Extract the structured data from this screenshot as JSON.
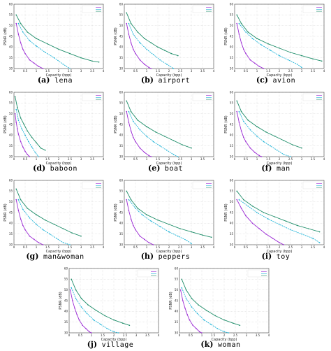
{
  "colors": {
    "series1": "#9b2bd4",
    "series2": "#1fb4d8",
    "series3": "#1f8e6a",
    "grid": "#d0d0d0",
    "axis": "#444444"
  },
  "chart_data": [
    {
      "type": "line",
      "letter": "(a)",
      "name": "lena",
      "xlabel": "Capacity (bpp)",
      "ylabel": "PSNR (dB)",
      "xlim": [
        0,
        4
      ],
      "ylim": [
        30,
        60
      ],
      "xticks": [
        0,
        0.5,
        1,
        1.5,
        2,
        2.5,
        3,
        3.5,
        4
      ],
      "yticks": [
        30,
        35,
        40,
        45,
        50,
        55,
        60
      ],
      "legend": "top-right",
      "series": [
        {
          "name": "",
          "x": [
            0.1,
            0.2,
            0.3,
            0.4,
            0.5,
            0.7,
            0.9,
            1.1,
            1.3
          ],
          "y": [
            51,
            46,
            42,
            39,
            37,
            34,
            32.5,
            31,
            30
          ]
        },
        {
          "name": "",
          "x": [
            0.2,
            0.4,
            0.7,
            1.0,
            1.4,
            1.8,
            2.2,
            2.5
          ],
          "y": [
            51,
            47,
            43,
            40.5,
            37.5,
            35,
            32,
            30
          ]
        },
        {
          "name": "",
          "x": [
            0.1,
            0.3,
            0.6,
            1.0,
            1.5,
            2.0,
            2.5,
            3.0,
            3.5,
            3.8
          ],
          "y": [
            55,
            51,
            47,
            44,
            41.5,
            39,
            37,
            35,
            33.5,
            33
          ]
        }
      ]
    },
    {
      "type": "line",
      "letter": "(b)",
      "name": "airport",
      "xlabel": "Capacity (bpp)",
      "ylabel": "PSNR (dB)",
      "xlim": [
        0,
        4
      ],
      "ylim": [
        30,
        60
      ],
      "xticks": [
        0,
        0.5,
        1,
        1.5,
        2,
        2.5,
        3,
        3.5,
        4
      ],
      "yticks": [
        30,
        35,
        40,
        45,
        50,
        55,
        60
      ],
      "legend": "top-right",
      "series": [
        {
          "name": "",
          "x": [
            0.1,
            0.2,
            0.3,
            0.4,
            0.5,
            0.7,
            0.9,
            1.1,
            1.2
          ],
          "y": [
            51,
            46,
            42,
            39,
            37,
            34,
            32,
            30.5,
            30
          ]
        },
        {
          "name": "",
          "x": [
            0.2,
            0.4,
            0.7,
            1.0,
            1.3,
            1.6,
            1.9,
            2.2
          ],
          "y": [
            51,
            46,
            42,
            39,
            36.5,
            34,
            32,
            30
          ]
        },
        {
          "name": "",
          "x": [
            0.1,
            0.3,
            0.6,
            0.9,
            1.2,
            1.5,
            1.8,
            2.1,
            2.4
          ],
          "y": [
            56,
            51,
            47,
            44,
            42,
            40,
            38.5,
            37,
            36
          ]
        }
      ]
    },
    {
      "type": "line",
      "letter": "(c)",
      "name": "avion",
      "xlabel": "Capacity (bpp)",
      "ylabel": "PSNR (dB)",
      "xlim": [
        0,
        4
      ],
      "ylim": [
        30,
        60
      ],
      "xticks": [
        0,
        0.5,
        1,
        1.5,
        2,
        2.5,
        3,
        3.5,
        4
      ],
      "yticks": [
        30,
        35,
        40,
        45,
        50,
        55,
        60
      ],
      "legend": "top-right",
      "series": [
        {
          "name": "",
          "x": [
            0.1,
            0.2,
            0.3,
            0.4,
            0.5,
            0.7,
            0.9,
            1.1,
            1.3
          ],
          "y": [
            51,
            46,
            42,
            39,
            37,
            34,
            32.5,
            31,
            30
          ]
        },
        {
          "name": "",
          "x": [
            0.2,
            0.5,
            0.8,
            1.2,
            1.6,
            2.0,
            2.4,
            2.8,
            3.0
          ],
          "y": [
            51,
            47,
            44,
            41,
            38.5,
            36,
            34,
            32,
            30.5
          ]
        },
        {
          "name": "",
          "x": [
            0.1,
            0.3,
            0.6,
            1.0,
            1.5,
            2.0,
            2.5,
            3.0,
            3.5,
            3.9
          ],
          "y": [
            55,
            51,
            47,
            44,
            41.5,
            39.5,
            37.5,
            36,
            34.5,
            33.5
          ]
        }
      ]
    },
    {
      "type": "line",
      "letter": "(d)",
      "name": "baboon",
      "xlabel": "Capacity (bpp)",
      "ylabel": "PSNR (dB)",
      "xlim": [
        0,
        4
      ],
      "ylim": [
        30,
        60
      ],
      "xticks": [
        0,
        0.5,
        1,
        1.5,
        2,
        2.5,
        3,
        3.5,
        4
      ],
      "yticks": [
        30,
        35,
        40,
        45,
        50,
        55,
        60
      ],
      "legend": "top-right",
      "series": [
        {
          "name": "",
          "x": [
            0.05,
            0.1,
            0.15,
            0.2,
            0.3,
            0.4,
            0.5,
            0.6,
            0.7
          ],
          "y": [
            50,
            46,
            43,
            40.5,
            37,
            34.5,
            32.5,
            31,
            30
          ]
        },
        {
          "name": "",
          "x": [
            0.1,
            0.2,
            0.35,
            0.5,
            0.65,
            0.8,
            0.95,
            1.1
          ],
          "y": [
            52,
            47,
            43,
            40,
            37,
            34.5,
            32,
            30
          ]
        },
        {
          "name": "",
          "x": [
            0.05,
            0.15,
            0.3,
            0.45,
            0.6,
            0.8,
            1.0,
            1.2,
            1.4
          ],
          "y": [
            58,
            53,
            48,
            45,
            42,
            39,
            36.5,
            34,
            33
          ]
        }
      ]
    },
    {
      "type": "line",
      "letter": "(e)",
      "name": "boat",
      "xlabel": "Capacity (bpp)",
      "ylabel": "PSNR (dB)",
      "xlim": [
        0,
        4
      ],
      "ylim": [
        30,
        60
      ],
      "xticks": [
        0,
        0.5,
        1,
        1.5,
        2,
        2.5,
        3,
        3.5,
        4
      ],
      "yticks": [
        30,
        35,
        40,
        45,
        50,
        55,
        60
      ],
      "legend": "top-right",
      "series": [
        {
          "name": "",
          "x": [
            0.1,
            0.2,
            0.3,
            0.4,
            0.5,
            0.7,
            0.9,
            1.1,
            1.2
          ],
          "y": [
            51,
            46,
            42,
            39,
            37,
            34,
            32,
            30.5,
            30
          ]
        },
        {
          "name": "",
          "x": [
            0.2,
            0.4,
            0.7,
            1.0,
            1.3,
            1.6,
            1.9,
            2.2,
            2.4
          ],
          "y": [
            51,
            46.5,
            42.5,
            39.5,
            37,
            35,
            33,
            31,
            30
          ]
        },
        {
          "name": "",
          "x": [
            0.1,
            0.3,
            0.6,
            1.0,
            1.4,
            1.8,
            2.2,
            2.6,
            3.0
          ],
          "y": [
            56,
            51,
            47,
            44,
            41.5,
            39.5,
            37.5,
            35.5,
            34
          ]
        }
      ]
    },
    {
      "type": "line",
      "letter": "(f)",
      "name": "man",
      "xlabel": "Capacity (bpp)",
      "ylabel": "PSNR (dB)",
      "xlim": [
        0,
        4
      ],
      "ylim": [
        30,
        60
      ],
      "xticks": [
        0,
        0.5,
        1,
        1.5,
        2,
        2.5,
        3,
        3.5,
        4
      ],
      "yticks": [
        30,
        35,
        40,
        45,
        50,
        55,
        60
      ],
      "legend": "top-right",
      "series": [
        {
          "name": "",
          "x": [
            0.1,
            0.2,
            0.3,
            0.4,
            0.5,
            0.7,
            0.9,
            1.1,
            1.2
          ],
          "y": [
            51,
            46,
            42,
            39,
            37,
            34,
            32,
            30.5,
            30
          ]
        },
        {
          "name": "",
          "x": [
            0.2,
            0.4,
            0.7,
            1.0,
            1.3,
            1.6,
            1.9,
            2.2,
            2.5
          ],
          "y": [
            51,
            46.5,
            42.5,
            39.5,
            37,
            35,
            33,
            31,
            30
          ]
        },
        {
          "name": "",
          "x": [
            0.1,
            0.3,
            0.6,
            1.0,
            1.4,
            1.8,
            2.2,
            2.6,
            3.0
          ],
          "y": [
            56,
            51,
            47,
            44,
            41.5,
            39.5,
            37.5,
            35.5,
            34
          ]
        }
      ]
    },
    {
      "type": "line",
      "letter": "(g)",
      "name": "man&woman",
      "xlabel": "Capacity (bpp)",
      "ylabel": "PSNR (dB)",
      "xlim": [
        0,
        4
      ],
      "ylim": [
        30,
        60
      ],
      "xticks": [
        0,
        0.5,
        1,
        1.5,
        2,
        2.5,
        3,
        3.5,
        4
      ],
      "yticks": [
        30,
        35,
        40,
        45,
        50,
        55,
        60
      ],
      "legend": "top-right",
      "series": [
        {
          "name": "",
          "x": [
            0.1,
            0.2,
            0.3,
            0.4,
            0.5,
            0.7,
            0.9,
            1.1,
            1.3
          ],
          "y": [
            51,
            46,
            42,
            39,
            37,
            34,
            32.5,
            31,
            30
          ]
        },
        {
          "name": "",
          "x": [
            0.2,
            0.4,
            0.7,
            1.0,
            1.3,
            1.6,
            1.9,
            2.2,
            2.5
          ],
          "y": [
            51,
            46.5,
            42.5,
            39.5,
            37,
            35,
            33,
            31,
            30
          ]
        },
        {
          "name": "",
          "x": [
            0.1,
            0.3,
            0.6,
            1.0,
            1.4,
            1.8,
            2.2,
            2.6,
            3.0
          ],
          "y": [
            56,
            51,
            47,
            44,
            41.5,
            39.5,
            37.5,
            35.5,
            34
          ]
        }
      ]
    },
    {
      "type": "line",
      "letter": "(h)",
      "name": "peppers",
      "xlabel": "Capacity (bpp)",
      "ylabel": "PSNR (dB)",
      "xlim": [
        0,
        4
      ],
      "ylim": [
        30,
        60
      ],
      "xticks": [
        0,
        0.5,
        1,
        1.5,
        2,
        2.5,
        3,
        3.5,
        4
      ],
      "yticks": [
        30,
        35,
        40,
        45,
        50,
        55,
        60
      ],
      "legend": "top-right",
      "series": [
        {
          "name": "",
          "x": [
            0.1,
            0.2,
            0.3,
            0.4,
            0.5,
            0.7,
            0.9,
            1.1,
            1.3
          ],
          "y": [
            51,
            46,
            42,
            39,
            37,
            34,
            32.5,
            31,
            30
          ]
        },
        {
          "name": "",
          "x": [
            0.2,
            0.5,
            0.8,
            1.2,
            1.6,
            2.0,
            2.4,
            2.8,
            3.0
          ],
          "y": [
            51,
            47,
            44,
            41,
            38.5,
            36,
            34,
            32,
            30.5
          ]
        },
        {
          "name": "",
          "x": [
            0.1,
            0.3,
            0.6,
            1.0,
            1.5,
            2.0,
            2.5,
            3.0,
            3.5,
            3.9
          ],
          "y": [
            55,
            51,
            47,
            44,
            41.5,
            39.5,
            37.5,
            36,
            34.5,
            33.5
          ]
        }
      ]
    },
    {
      "type": "line",
      "letter": "(i)",
      "name": "toy",
      "xlabel": "Capacity (bpp)",
      "ylabel": "PSNR (dB)",
      "xlim": [
        0,
        4
      ],
      "ylim": [
        30,
        60
      ],
      "xticks": [
        0,
        0.5,
        1,
        1.5,
        2,
        2.5,
        3,
        3.5,
        4
      ],
      "yticks": [
        30,
        35,
        40,
        45,
        50,
        55,
        60
      ],
      "legend": "top-right",
      "series": [
        {
          "name": "",
          "x": [
            0.1,
            0.3,
            0.5,
            0.8,
            1.1,
            1.4,
            1.7,
            2.0,
            2.2
          ],
          "y": [
            51,
            47,
            43.5,
            40,
            37.5,
            35,
            33,
            31,
            30
          ]
        },
        {
          "name": "",
          "x": [
            0.2,
            0.6,
            1.0,
            1.5,
            2.0,
            2.5,
            3.0,
            3.5,
            3.8
          ],
          "y": [
            51,
            48,
            45,
            42,
            39.5,
            37,
            35,
            33,
            31
          ]
        },
        {
          "name": "",
          "x": [
            0.1,
            0.4,
            0.8,
            1.3,
            1.8,
            2.3,
            2.8,
            3.3,
            3.8
          ],
          "y": [
            55,
            51,
            48,
            45,
            43,
            41,
            39,
            37.5,
            36
          ]
        }
      ]
    },
    {
      "type": "line",
      "letter": "(j)",
      "name": "village",
      "xlabel": "Capacity (bpp)",
      "ylabel": "PSNR (dB)",
      "xlim": [
        0,
        4
      ],
      "ylim": [
        30,
        60
      ],
      "xticks": [
        0,
        0.5,
        1,
        1.5,
        2,
        2.5,
        3,
        3.5,
        4
      ],
      "yticks": [
        30,
        35,
        40,
        45,
        50,
        55,
        60
      ],
      "legend": "top-right",
      "series": [
        {
          "name": "",
          "x": [
            0.05,
            0.15,
            0.25,
            0.35,
            0.45,
            0.6,
            0.75,
            0.9,
            1.0
          ],
          "y": [
            50,
            45,
            41.5,
            38.5,
            36,
            33.5,
            32,
            30.5,
            30
          ]
        },
        {
          "name": "",
          "x": [
            0.1,
            0.3,
            0.55,
            0.8,
            1.1,
            1.4,
            1.7,
            2.0,
            2.2
          ],
          "y": [
            51,
            46,
            42,
            39,
            36,
            34,
            32,
            30.5,
            30
          ]
        },
        {
          "name": "",
          "x": [
            0.1,
            0.3,
            0.55,
            0.85,
            1.2,
            1.6,
            2.0,
            2.4,
            2.7
          ],
          "y": [
            55,
            50,
            46,
            43,
            40.5,
            38,
            36,
            34.5,
            33.5
          ]
        }
      ]
    },
    {
      "type": "line",
      "letter": "(k)",
      "name": "woman",
      "xlabel": "Capacity (bpp)",
      "ylabel": "PSNR (dB)",
      "xlim": [
        0,
        4
      ],
      "ylim": [
        30,
        60
      ],
      "xticks": [
        0,
        0.5,
        1,
        1.5,
        2,
        2.5,
        3,
        3.5,
        4
      ],
      "yticks": [
        30,
        35,
        40,
        45,
        50,
        55,
        60
      ],
      "legend": "top-right",
      "series": [
        {
          "name": "",
          "x": [
            0.05,
            0.15,
            0.25,
            0.35,
            0.45,
            0.6,
            0.75,
            0.9,
            1.0
          ],
          "y": [
            50,
            45,
            41.5,
            38.5,
            36,
            33.5,
            32,
            30.5,
            30
          ]
        },
        {
          "name": "",
          "x": [
            0.1,
            0.3,
            0.55,
            0.8,
            1.1,
            1.4,
            1.7,
            2.0,
            2.2
          ],
          "y": [
            51,
            46,
            42,
            39,
            36,
            34,
            32,
            30.5,
            30
          ]
        },
        {
          "name": "",
          "x": [
            0.1,
            0.3,
            0.55,
            0.85,
            1.2,
            1.6,
            2.0,
            2.4,
            2.7
          ],
          "y": [
            55,
            50,
            46,
            43,
            40.5,
            38,
            36,
            34.5,
            33.5
          ]
        }
      ]
    }
  ]
}
